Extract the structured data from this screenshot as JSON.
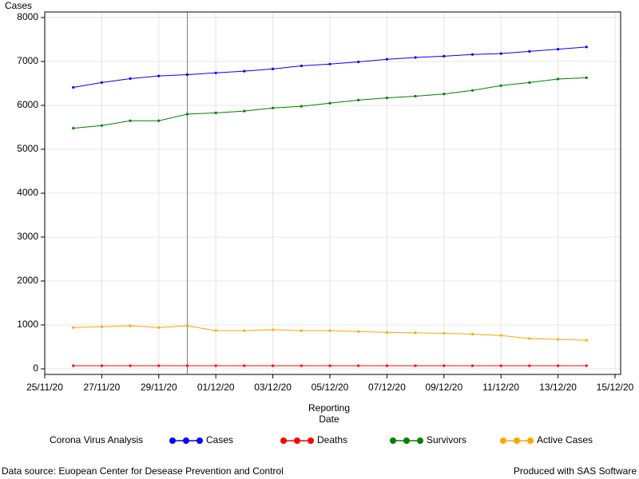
{
  "chart_data": {
    "type": "line",
    "y_label": "Cases",
    "x_label": [
      "Reporting",
      "Date"
    ],
    "legend_title": "Corona Virus Analysis",
    "footnote_left": "Data source: Euopean Center for Desease Prevention and Control",
    "footnote_right": "Produced with SAS Software",
    "x": [
      "26/11/20",
      "27/11/20",
      "28/11/20",
      "29/11/20",
      "30/11/20",
      "01/12/20",
      "02/12/20",
      "03/12/20",
      "04/12/20",
      "05/12/20",
      "06/12/20",
      "07/12/20",
      "08/12/20",
      "09/12/20",
      "10/12/20",
      "11/12/20",
      "12/12/20",
      "13/12/20",
      "14/12/20"
    ],
    "series": [
      {
        "name": "Cases",
        "color": "#0000ff",
        "values": [
          6410,
          6520,
          6610,
          6670,
          6700,
          6740,
          6780,
          6830,
          6900,
          6940,
          6990,
          7050,
          7090,
          7120,
          7160,
          7180,
          7230,
          7280,
          7330
        ]
      },
      {
        "name": "Deaths",
        "color": "#ff0000",
        "values": [
          70,
          70,
          70,
          70,
          70,
          70,
          70,
          70,
          70,
          70,
          70,
          70,
          70,
          70,
          70,
          70,
          70,
          70,
          70
        ]
      },
      {
        "name": "Survivors",
        "color": "#008000",
        "values": [
          5480,
          5540,
          5650,
          5650,
          5800,
          5830,
          5870,
          5940,
          5980,
          6050,
          6120,
          6170,
          6210,
          6260,
          6340,
          6450,
          6520,
          6600,
          6630
        ]
      },
      {
        "name": "Active Cases",
        "color": "#ffa500",
        "values": [
          940,
          960,
          980,
          940,
          980,
          870,
          870,
          890,
          870,
          870,
          850,
          830,
          820,
          810,
          790,
          760,
          690,
          670,
          650
        ]
      }
    ],
    "xlim": [
      "25/11/20",
      "15/12/20"
    ],
    "xticks": [
      "25/11/20",
      "27/11/20",
      "29/11/20",
      "01/12/20",
      "03/12/20",
      "05/12/20",
      "07/12/20",
      "09/12/20",
      "11/12/20",
      "13/12/20",
      "15/12/20"
    ],
    "ylim": [
      0,
      8000
    ],
    "yticks": [
      0,
      1000,
      2000,
      3000,
      4000,
      5000,
      6000,
      7000,
      8000
    ],
    "refline_x": "30/11/20",
    "grid": true
  }
}
